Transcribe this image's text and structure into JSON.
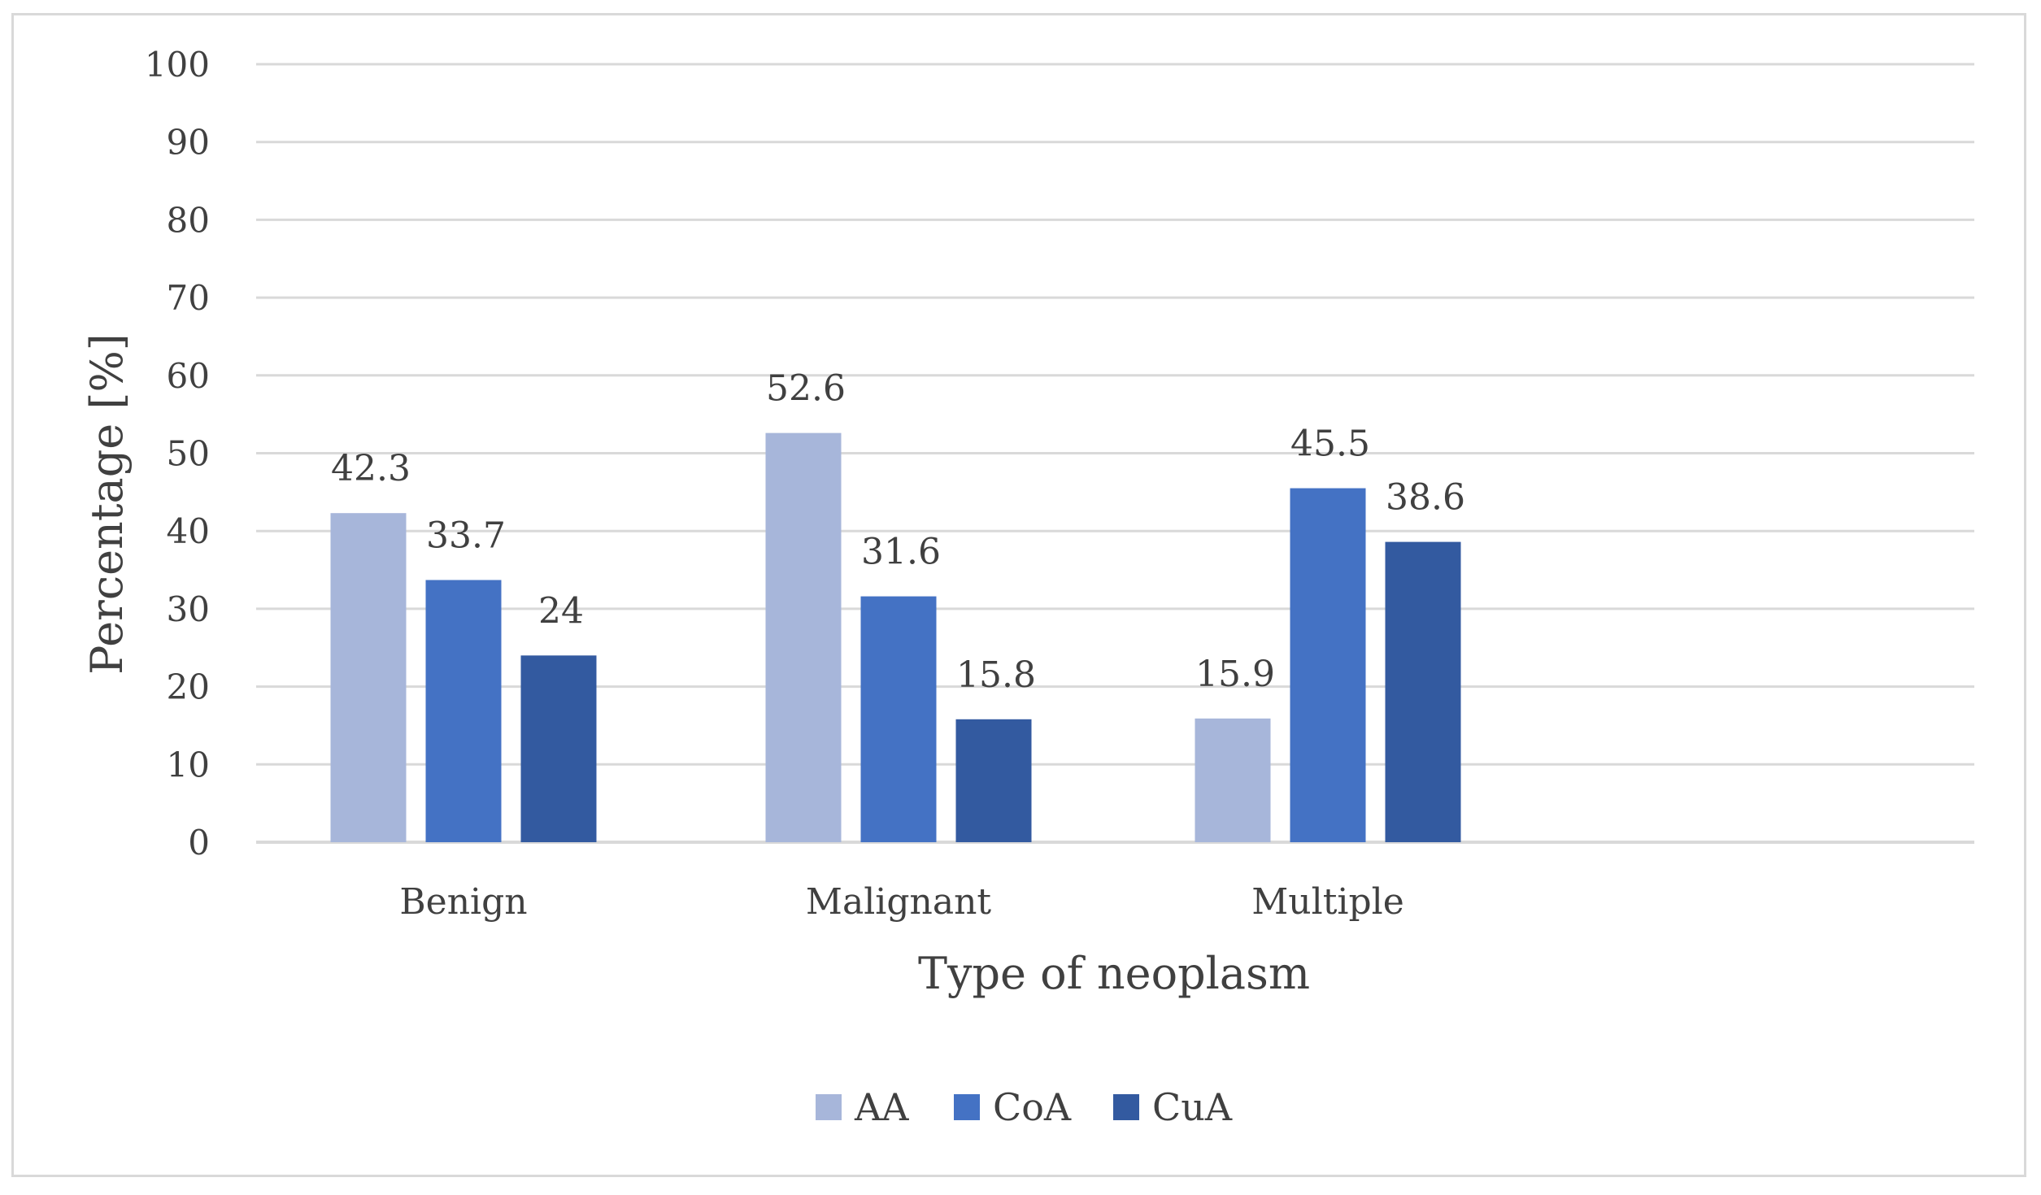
{
  "chart_data": {
    "type": "bar",
    "categories": [
      "Benign",
      "Malignant",
      "Multiple"
    ],
    "series": [
      {
        "name": "AA",
        "color": "#a7b6da",
        "values": [
          42.3,
          52.6,
          15.9
        ]
      },
      {
        "name": "CoA",
        "color": "#4472c4",
        "values": [
          33.7,
          31.6,
          45.5
        ]
      },
      {
        "name": "CuA",
        "color": "#335aa0",
        "values": [
          24,
          15.8,
          38.6
        ]
      }
    ],
    "data_labels": [
      [
        "42.3",
        "52.6",
        "15.9"
      ],
      [
        "33.7",
        "31.6",
        "45.5"
      ],
      [
        "24",
        "15.8",
        "38.6"
      ]
    ],
    "yticks": [
      "0",
      "10",
      "20",
      "30",
      "40",
      "50",
      "60",
      "70",
      "80",
      "90",
      "100"
    ],
    "ylim": [
      0,
      100
    ],
    "xlabel": "Type of neoplasm",
    "ylabel": "Percentage [%]",
    "grid": true,
    "legend_position": "bottom",
    "gridline_color": "#d9d9d9"
  }
}
